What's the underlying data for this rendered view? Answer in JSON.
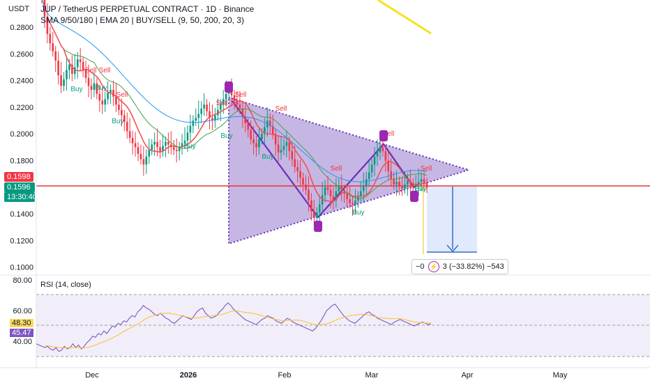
{
  "header": {
    "currency": "USDT",
    "title": "JUP / TetherUS PERPETUAL CONTRACT · 1D · Binance",
    "indicators": "SMA 9/50/180 | EMA 20 | BUY/SELL (9, 50, 200, 20, 3)"
  },
  "price_badges": {
    "price_red": "0.1598",
    "last_price": "0.1596",
    "countdown": "13:30:40"
  },
  "rsi": {
    "label": "RSI (14, close)",
    "ma_value": "48.30",
    "value": "45.47"
  },
  "measure": {
    "text_left": "−0",
    "text_right": "3 (−33.82%) −543"
  },
  "colors": {
    "bull": "#089981",
    "bear": "#f23645",
    "triangle_fill": "#b39ddb",
    "triangle_edge": "#6a2fb5",
    "sma9": "#ef5350",
    "sma50": "#43a047",
    "sma180": "#2196f3",
    "rsi_line": "#7e57c2",
    "rsi_ma": "#f9c33c",
    "hline": "#e53935",
    "measure_fill": "#dbe6fb",
    "measure_line": "#1e56b8",
    "marker": "#9c27b0"
  },
  "chart_data": [
    {
      "type": "line",
      "title": "JUP / TetherUS PERPETUAL CONTRACT · 1D · Binance",
      "y_ticks": [
        "0.2800",
        "0.2600",
        "0.2400",
        "0.2200",
        "0.2000",
        "0.1800",
        "0.1600",
        "0.1400",
        "0.1200",
        "0.1000"
      ],
      "x_ticks": [
        "Dec",
        "2026",
        "Feb",
        "Mar",
        "Apr",
        "May"
      ],
      "ylim": [
        0.094,
        0.3005
      ],
      "close_series": [
        0.302,
        0.288,
        0.275,
        0.268,
        0.262,
        0.255,
        0.244,
        0.236,
        0.241,
        0.248,
        0.252,
        0.245,
        0.25,
        0.256,
        0.254,
        0.248,
        0.242,
        0.236,
        0.233,
        0.238,
        0.23,
        0.225,
        0.222,
        0.226,
        0.231,
        0.233,
        0.228,
        0.222,
        0.218,
        0.214,
        0.209,
        0.202,
        0.197,
        0.193,
        0.19,
        0.185,
        0.181,
        0.177,
        0.183,
        0.188,
        0.192,
        0.194,
        0.19,
        0.187,
        0.191,
        0.194,
        0.192,
        0.19,
        0.188,
        0.187,
        0.19,
        0.193,
        0.195,
        0.201,
        0.206,
        0.21,
        0.212,
        0.215,
        0.219,
        0.222,
        0.217,
        0.212,
        0.21,
        0.214,
        0.218,
        0.222,
        0.226,
        0.23,
        0.233,
        0.229,
        0.225,
        0.222,
        0.219,
        0.213,
        0.208,
        0.203,
        0.196,
        0.193,
        0.19,
        0.196,
        0.2,
        0.205,
        0.21,
        0.206,
        0.2,
        0.192,
        0.186,
        0.188,
        0.191,
        0.194,
        0.187,
        0.181,
        0.175,
        0.172,
        0.167,
        0.162,
        0.158,
        0.15,
        0.142,
        0.137,
        0.141,
        0.147,
        0.154,
        0.16,
        0.158,
        0.153,
        0.15,
        0.157,
        0.161,
        0.158,
        0.155,
        0.151,
        0.148,
        0.147,
        0.15,
        0.153,
        0.157,
        0.161,
        0.166,
        0.171,
        0.177,
        0.183,
        0.186,
        0.19,
        0.187,
        0.18,
        0.172,
        0.166,
        0.162,
        0.164,
        0.161,
        0.159,
        0.162,
        0.165,
        0.163,
        0.16,
        0.162,
        0.164,
        0.166,
        0.163,
        0.1596
      ]
    },
    {
      "type": "line",
      "title": "RSI (14, close)",
      "y_ticks": [
        "80.00",
        "60.00",
        "40.00"
      ],
      "ylim": [
        20,
        80
      ],
      "rsi_series": [
        30,
        29,
        28,
        27,
        28,
        26,
        25,
        27,
        24,
        25,
        28,
        26,
        27,
        30,
        27,
        29,
        26,
        28,
        31,
        33,
        36,
        35,
        38,
        37,
        40,
        38,
        41,
        44,
        43,
        46,
        45,
        48,
        47,
        50,
        52,
        51,
        55,
        57,
        60,
        58,
        57,
        55,
        53,
        52,
        54,
        52,
        50,
        49,
        47,
        46,
        48,
        50,
        52,
        51,
        50,
        49,
        52,
        55,
        57,
        58,
        54,
        52,
        50,
        51,
        52,
        55,
        57,
        60,
        62,
        60,
        57,
        55,
        53,
        51,
        49,
        48,
        47,
        46,
        45,
        47,
        49,
        50,
        52,
        51,
        50,
        48,
        47,
        46,
        48,
        50,
        49,
        47,
        46,
        45,
        44,
        43,
        42,
        41,
        40,
        42,
        45,
        48,
        52,
        56,
        58,
        60,
        61,
        58,
        55,
        52,
        50,
        48,
        47,
        46,
        48,
        50,
        52,
        54,
        55,
        53,
        52,
        50,
        49,
        48,
        47,
        46,
        45,
        47,
        48,
        49,
        48,
        47,
        46,
        45,
        44,
        45,
        46,
        47,
        46,
        45,
        45.47
      ]
    }
  ]
}
